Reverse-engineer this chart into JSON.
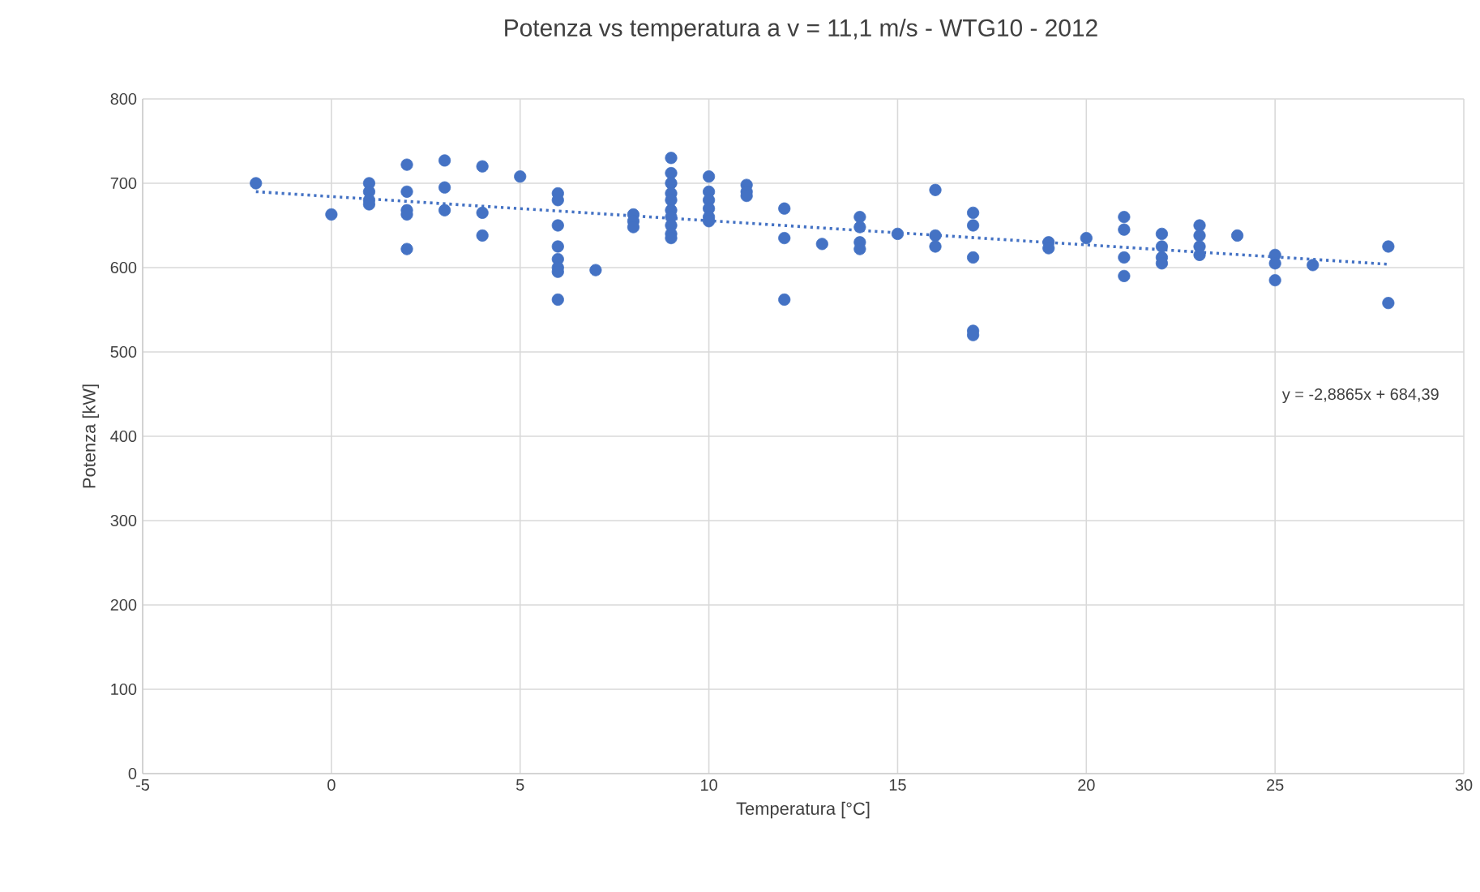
{
  "chart_data": {
    "type": "scatter",
    "title": "Potenza vs temperatura a v = 11,1 m/s - WTG10 - 2012",
    "xlabel": "Temperatura [°C]",
    "ylabel": "Potenza [kW]",
    "xlim": [
      -5,
      30
    ],
    "xticks": [
      -5,
      0,
      5,
      10,
      15,
      20,
      25,
      30
    ],
    "ylim": [
      0,
      800
    ],
    "yticks": [
      0,
      100,
      200,
      300,
      400,
      500,
      600,
      700,
      800
    ],
    "grid": true,
    "marker": "circle",
    "annotations": [
      "y = -2,8865x + 684,39"
    ],
    "series": [
      {
        "color": "#4472c4",
        "x": [
          -2,
          0,
          1,
          1,
          1,
          1,
          2,
          2,
          2,
          2,
          2,
          3,
          3,
          3,
          4,
          4,
          4,
          5,
          6,
          6,
          6,
          6,
          6,
          6,
          6,
          6,
          7,
          8,
          8,
          8,
          9,
          9,
          9,
          9,
          9,
          9,
          9,
          9,
          9,
          9,
          10,
          10,
          10,
          10,
          10,
          10,
          11,
          11,
          11,
          12,
          12,
          12,
          13,
          14,
          14,
          14,
          14,
          15,
          16,
          16,
          16,
          17,
          17,
          17,
          17,
          17,
          19,
          19,
          20,
          21,
          21,
          21,
          21,
          22,
          22,
          22,
          22,
          23,
          23,
          23,
          23,
          24,
          25,
          25,
          25,
          26,
          28,
          28
        ],
        "values": [
          700,
          663,
          700,
          690,
          680,
          675,
          722,
          690,
          668,
          663,
          622,
          727,
          695,
          668,
          720,
          665,
          638,
          708,
          688,
          680,
          650,
          625,
          610,
          600,
          595,
          562,
          597,
          663,
          655,
          648,
          730,
          712,
          700,
          688,
          680,
          668,
          660,
          650,
          640,
          635,
          708,
          690,
          680,
          670,
          660,
          655,
          698,
          690,
          685,
          670,
          635,
          562,
          628,
          660,
          648,
          630,
          622,
          640,
          692,
          638,
          625,
          665,
          650,
          612,
          525,
          520,
          630,
          623,
          635,
          660,
          645,
          612,
          590,
          640,
          625,
          612,
          605,
          650,
          638,
          625,
          615,
          638,
          615,
          605,
          585,
          603,
          625,
          558
        ]
      },
      {
        "type": "line",
        "color": "#4472c4",
        "line_style": "dotted",
        "marker": "none",
        "x": [
          -2,
          28
        ],
        "values": [
          690,
          604
        ]
      }
    ]
  }
}
